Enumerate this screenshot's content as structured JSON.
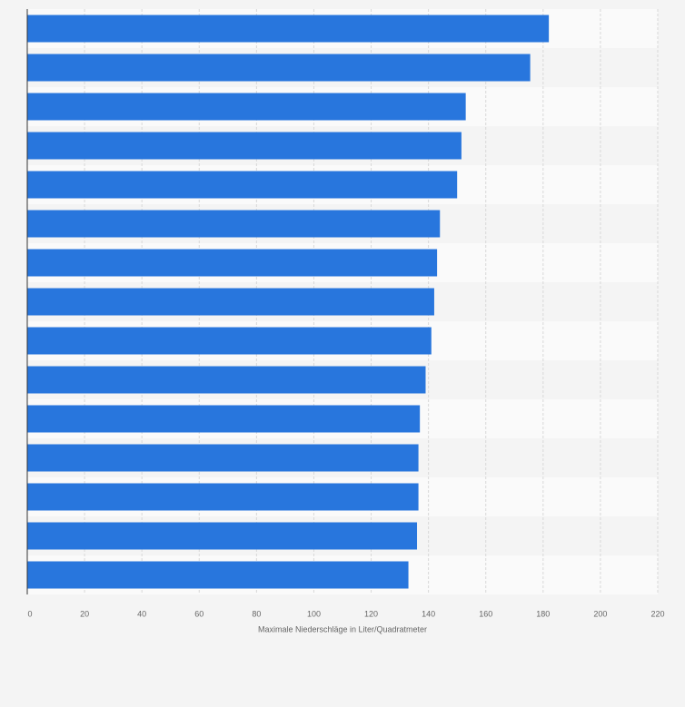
{
  "chart_data": {
    "type": "bar",
    "orientation": "horizontal",
    "xlabel": "Maximale Niederschläge in Liter/Quadratmeter",
    "categories": [
      null,
      null,
      null,
      null,
      null,
      null,
      null,
      null,
      null,
      null,
      null,
      null,
      null,
      null,
      null
    ],
    "values": [
      182,
      175.5,
      153,
      151.5,
      150,
      144,
      143,
      142,
      141,
      139,
      137,
      136.5,
      136.5,
      136,
      133
    ],
    "color": "#2876dd",
    "xlim": [
      0,
      220
    ],
    "xticks": [
      0,
      20,
      40,
      60,
      80,
      100,
      120,
      140,
      160,
      180,
      200,
      220
    ],
    "grid": true
  }
}
